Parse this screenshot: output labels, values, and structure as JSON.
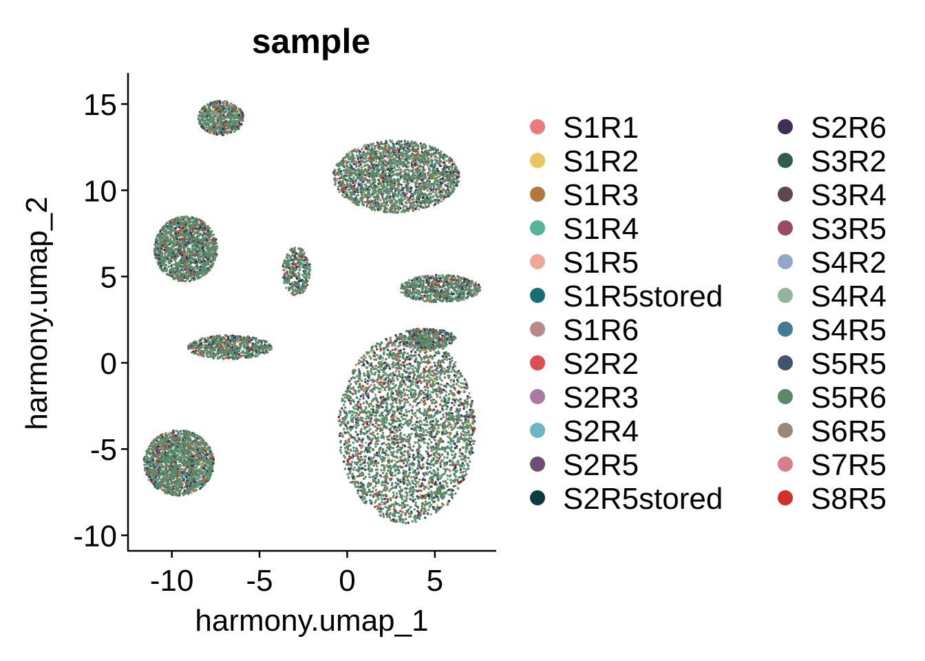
{
  "chart_data": {
    "type": "scatter",
    "title": "sample",
    "xlabel": "harmony.umap_1",
    "ylabel": "harmony.umap_2",
    "xlim": [
      -12.5,
      8.5
    ],
    "ylim": [
      -10.9,
      16.8
    ],
    "xticks": [
      -10,
      -5,
      0,
      5
    ],
    "xtick_labels": [
      "-10",
      "-5",
      "0",
      "5"
    ],
    "yticks": [
      15,
      10,
      5,
      0,
      -5,
      -10
    ],
    "ytick_labels": [
      "15",
      "10",
      "5",
      "0",
      "-5",
      "-10"
    ],
    "grid": false,
    "legend_position": "right",
    "legend": [
      {
        "name": "S1R1",
        "color": "#E87A80"
      },
      {
        "name": "S1R2",
        "color": "#E8C55E"
      },
      {
        "name": "S1R3",
        "color": "#B5763A"
      },
      {
        "name": "S1R4",
        "color": "#55B29B"
      },
      {
        "name": "S1R5",
        "color": "#EFA893"
      },
      {
        "name": "S1R5stored",
        "color": "#156E74"
      },
      {
        "name": "S1R6",
        "color": "#B88B88"
      },
      {
        "name": "S2R2",
        "color": "#DC4D4F"
      },
      {
        "name": "S2R3",
        "color": "#A87AA2"
      },
      {
        "name": "S2R4",
        "color": "#6BB6C3"
      },
      {
        "name": "S2R5",
        "color": "#6E4E75"
      },
      {
        "name": "S2R5stored",
        "color": "#0C3A40"
      },
      {
        "name": "S2R6",
        "color": "#3E2E58"
      },
      {
        "name": "S3R2",
        "color": "#2E5C53"
      },
      {
        "name": "S3R4",
        "color": "#5F4652"
      },
      {
        "name": "S3R5",
        "color": "#9A4A64"
      },
      {
        "name": "S4R2",
        "color": "#93A7C7"
      },
      {
        "name": "S4R4",
        "color": "#93B39D"
      },
      {
        "name": "S4R5",
        "color": "#417C96"
      },
      {
        "name": "S5R5",
        "color": "#41546B"
      },
      {
        "name": "S5R6",
        "color": "#5A8A68"
      },
      {
        "name": "S6R5",
        "color": "#9A867A"
      },
      {
        "name": "S7R5",
        "color": "#D77D8B"
      },
      {
        "name": "S8R5",
        "color": "#D32F25"
      }
    ],
    "clusters": [
      {
        "name": "top-left",
        "center": [
          -7.2,
          14.2
        ],
        "radius": [
          1.3,
          1.0
        ],
        "points": 700
      },
      {
        "name": "left-upper",
        "center": [
          -9.2,
          6.6
        ],
        "radius": [
          1.8,
          1.9
        ],
        "points": 1900
      },
      {
        "name": "left-middle",
        "center": [
          -6.7,
          0.9
        ],
        "radius": [
          2.4,
          0.7
        ],
        "points": 800
      },
      {
        "name": "left-lower",
        "center": [
          -9.6,
          -5.8
        ],
        "radius": [
          2.0,
          1.9
        ],
        "points": 2100
      },
      {
        "name": "small-middle",
        "center": [
          -2.9,
          5.3
        ],
        "radius": [
          0.8,
          1.4
        ],
        "points": 380
      },
      {
        "name": "top-right",
        "center": [
          2.8,
          10.8
        ],
        "radius": [
          3.6,
          2.1
        ],
        "points": 2600
      },
      {
        "name": "right-arm",
        "center": [
          5.3,
          4.3
        ],
        "radius": [
          2.3,
          0.8
        ],
        "points": 800
      },
      {
        "name": "right-knob",
        "center": [
          4.5,
          1.4
        ],
        "radius": [
          1.7,
          0.6
        ],
        "points": 500
      },
      {
        "name": "large-right",
        "center": [
          3.4,
          -3.8
        ],
        "radius": [
          3.9,
          5.5
        ],
        "points": 9000
      }
    ]
  }
}
